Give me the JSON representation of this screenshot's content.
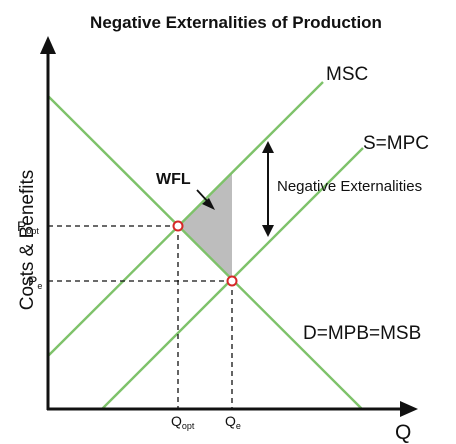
{
  "title": "Negative Externalities of Production",
  "axes": {
    "y_label": "Costs & Benefits",
    "x_label": "Q"
  },
  "curves": {
    "msc": "MSC",
    "smpc": "S=MPC",
    "demand": "D=MPB=MSB"
  },
  "annotations": {
    "wfl": "WFL",
    "negative_externalities": "Negative Externalities"
  },
  "prices": {
    "p_opt": {
      "main": "P",
      "sub": "opt"
    },
    "p_e": {
      "main": "P",
      "sub": "e"
    }
  },
  "quantities": {
    "q_opt": {
      "main": "Q",
      "sub": "opt"
    },
    "q_e": {
      "main": "Q",
      "sub": "e"
    }
  },
  "colors": {
    "curve": "#7ec26a",
    "axis": "#111111",
    "welfare_loss": "#bdbdbd",
    "equilibrium_stroke": "#d62828"
  }
}
